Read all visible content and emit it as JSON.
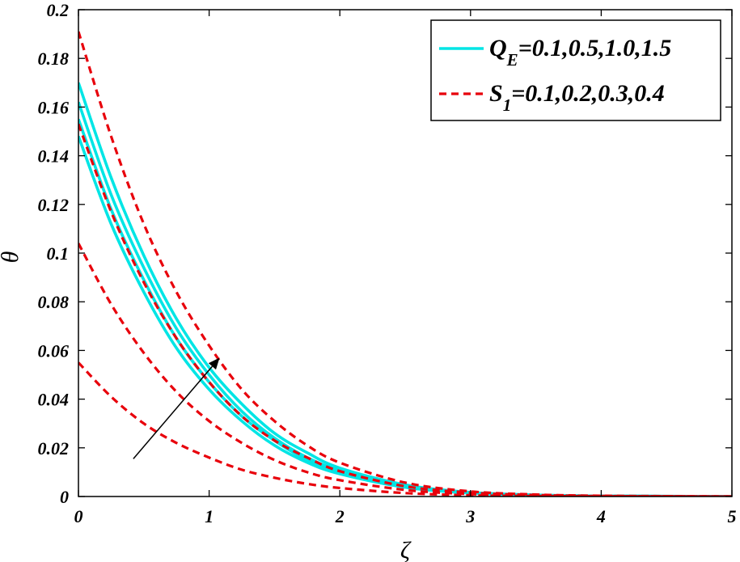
{
  "chart_data": {
    "type": "line",
    "xlabel": "ζ",
    "ylabel": "θ",
    "xlim": [
      0,
      5
    ],
    "ylim": [
      0,
      0.2
    ],
    "x_ticks": [
      "0",
      "1",
      "2",
      "3",
      "4",
      "5"
    ],
    "y_ticks": [
      "0",
      "0.02",
      "0.04",
      "0.06",
      "0.08",
      "0.1",
      "0.12",
      "0.14",
      "0.16",
      "0.18",
      "0.2"
    ],
    "grid": false,
    "legend_position": "top-right",
    "legend": [
      {
        "main": "Q",
        "sub": "E",
        "rest": "=0.1,0.5,1.0,1.5",
        "color": "#00e5e5",
        "style": "solid"
      },
      {
        "main": "S",
        "sub": "1",
        "rest": "=0.1,0.2,0.3,0.4",
        "color": "#e8000b",
        "style": "dashed"
      }
    ],
    "groups": [
      {
        "label": "Q_E",
        "color": "#00e5e5",
        "style": "solid",
        "x": [
          0,
          0.25,
          0.5,
          0.75,
          1.0,
          1.25,
          1.5,
          1.75,
          2.0,
          2.5,
          3.0,
          3.5,
          4.0,
          5.0
        ],
        "series": [
          {
            "param": "0.1",
            "y": [
              0.148,
              0.112,
              0.084,
              0.061,
              0.044,
              0.031,
              0.021,
              0.014,
              0.0093,
              0.0038,
              0.0014,
              0.0005,
              0.0002,
              0.0
            ]
          },
          {
            "param": "0.5",
            "y": [
              0.155,
              0.118,
              0.089,
              0.065,
              0.047,
              0.033,
              0.023,
              0.015,
              0.0101,
              0.0041,
              0.0015,
              0.0005,
              0.0002,
              0.0
            ]
          },
          {
            "param": "1.0",
            "y": [
              0.162,
              0.124,
              0.094,
              0.069,
              0.05,
              0.035,
              0.024,
              0.016,
              0.0108,
              0.0044,
              0.0016,
              0.0006,
              0.0002,
              0.0
            ]
          },
          {
            "param": "1.5",
            "y": [
              0.17,
              0.131,
              0.099,
              0.073,
              0.053,
              0.038,
              0.026,
              0.018,
              0.0117,
              0.0048,
              0.0017,
              0.0006,
              0.0002,
              0.0
            ]
          }
        ]
      },
      {
        "label": "S_1",
        "color": "#e8000b",
        "style": "dashed",
        "x": [
          0,
          0.25,
          0.5,
          0.75,
          1.0,
          1.25,
          1.5,
          1.75,
          2.0,
          2.5,
          3.0,
          3.5,
          4.0,
          5.0
        ],
        "series": [
          {
            "param": "0.1",
            "y": [
              0.055,
              0.041,
              0.03,
              0.022,
              0.016,
              0.011,
              0.0077,
              0.0052,
              0.0035,
              0.0014,
              0.0005,
              0.0002,
              0.0001,
              0.0
            ]
          },
          {
            "param": "0.2",
            "y": [
              0.104,
              0.079,
              0.059,
              0.043,
              0.031,
              0.022,
              0.015,
              0.01,
              0.0067,
              0.0027,
              0.001,
              0.0004,
              0.0001,
              0.0
            ]
          },
          {
            "param": "0.3",
            "y": [
              0.153,
              0.117,
              0.088,
              0.065,
              0.047,
              0.033,
              0.023,
              0.016,
              0.0104,
              0.0042,
              0.0016,
              0.0006,
              0.0002,
              0.0
            ]
          },
          {
            "param": "0.4",
            "y": [
              0.191,
              0.148,
              0.112,
              0.084,
              0.062,
              0.044,
              0.031,
              0.021,
              0.0139,
              0.0057,
              0.0021,
              0.0008,
              0.0003,
              0.0
            ]
          }
        ]
      }
    ],
    "annotations": [
      {
        "type": "arrow",
        "from": [
          0.42,
          0.0155
        ],
        "to": [
          1.08,
          0.057
        ],
        "color": "#000000"
      }
    ]
  }
}
